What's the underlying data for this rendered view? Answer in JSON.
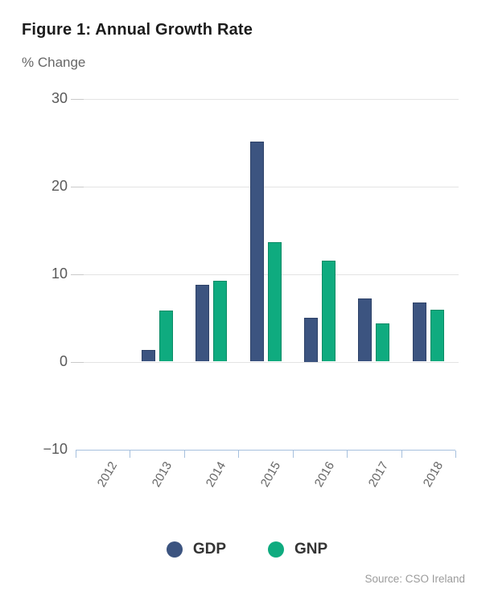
{
  "header": {
    "title": "Figure 1: Annual Growth Rate",
    "subtitle": "% Change"
  },
  "chart_data": {
    "type": "bar",
    "title": "Figure 1: Annual Growth Rate",
    "subtitle": "% Change",
    "ylabel": "% Change",
    "xlabel": "",
    "categories": [
      "2012",
      "2013",
      "2014",
      "2015",
      "2016",
      "2017",
      "2018"
    ],
    "series": [
      {
        "name": "GDP",
        "color": "#3c5480",
        "border_color": "#2e4268",
        "values": [
          null,
          1.3,
          8.8,
          25.1,
          5.0,
          7.2,
          6.7
        ]
      },
      {
        "name": "GNP",
        "color": "#0fab7f",
        "border_color": "#0b8b66",
        "values": [
          null,
          5.8,
          9.2,
          13.6,
          11.5,
          4.4,
          5.9
        ]
      }
    ],
    "ylim": [
      -10,
      30
    ],
    "yticks": [
      {
        "value": 30,
        "label": "30"
      },
      {
        "value": 20,
        "label": "20"
      },
      {
        "value": 10,
        "label": "10"
      },
      {
        "value": 0,
        "label": "0"
      },
      {
        "value": -10,
        "label": "−10"
      }
    ],
    "grid": true,
    "legend_position": "bottom-center",
    "gridline_color": "#e4e4e4",
    "axis_line_color": "#a6c0de",
    "source": "Source: CSO Ireland"
  },
  "legend": {
    "items": [
      {
        "label": "GDP",
        "color": "#3c5480"
      },
      {
        "label": "GNP",
        "color": "#0fab7f"
      }
    ]
  },
  "footer": {
    "source": "Source: CSO Ireland"
  }
}
